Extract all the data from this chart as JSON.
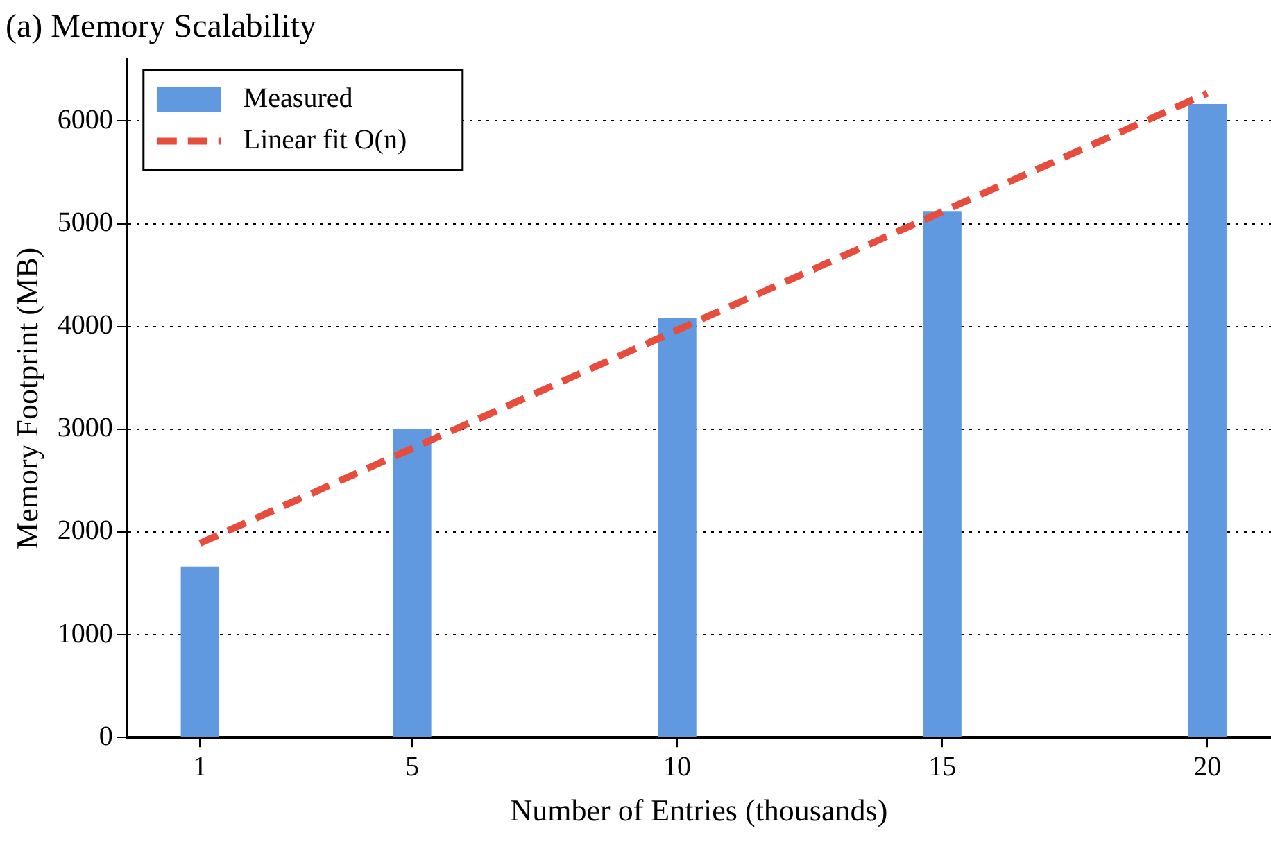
{
  "chart_data": {
    "type": "bar",
    "title": "(a) Memory Scalability",
    "xlabel": "Number of Entries (thousands)",
    "ylabel": "Memory Footprint (MB)",
    "x": [
      1,
      5,
      10,
      15,
      20
    ],
    "series": [
      {
        "name": "Measured",
        "color": "#6199e0",
        "values": [
          1660,
          3000,
          4080,
          5120,
          6160
        ]
      },
      {
        "name": "Linear fit O(n)",
        "type": "line",
        "color": "#e74c3c",
        "x": [
          1,
          20
        ],
        "values": [
          1890,
          6270
        ],
        "line_style": "dashed",
        "marker": "none"
      }
    ],
    "xlim": [
      -0.38,
      21.2
    ],
    "xticks": [
      1,
      5,
      10,
      15,
      20
    ],
    "ylim": [
      0,
      6600
    ],
    "yticks": [
      0,
      1000,
      2000,
      3000,
      4000,
      5000,
      6000
    ],
    "grid": "y",
    "legend": "top left"
  }
}
